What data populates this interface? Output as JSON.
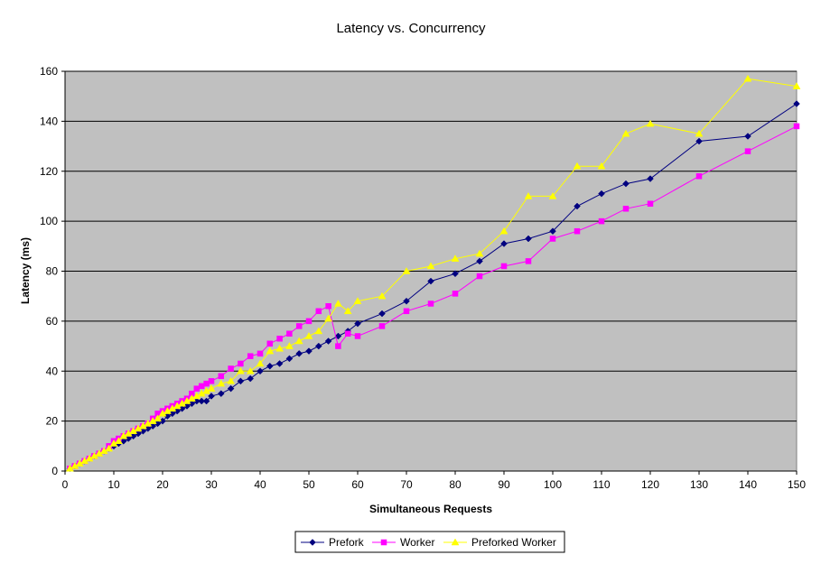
{
  "chart_data": {
    "type": "line",
    "title": "Latency vs. Concurrency",
    "xlabel": "Simultaneous Requests",
    "ylabel": "Latency (ms)",
    "xlim": [
      0,
      150
    ],
    "ylim": [
      0,
      160
    ],
    "xticks": [
      0,
      10,
      20,
      30,
      40,
      50,
      60,
      70,
      80,
      90,
      100,
      110,
      120,
      130,
      140,
      150
    ],
    "yticks": [
      0,
      20,
      40,
      60,
      80,
      100,
      120,
      140,
      160
    ],
    "grid": "horizontal",
    "legend_position": "bottom",
    "plot_background": "#c0c0c0",
    "series": [
      {
        "name": "Prefork",
        "color": "#000080",
        "marker": "diamond",
        "x": [
          1,
          2,
          3,
          4,
          5,
          6,
          7,
          8,
          9,
          10,
          11,
          12,
          13,
          14,
          15,
          16,
          17,
          18,
          19,
          20,
          21,
          22,
          23,
          24,
          25,
          26,
          27,
          28,
          29,
          30,
          32,
          34,
          36,
          38,
          40,
          42,
          44,
          46,
          48,
          50,
          52,
          54,
          56,
          58,
          60,
          65,
          70,
          75,
          80,
          85,
          90,
          95,
          100,
          105,
          110,
          115,
          120,
          130,
          140,
          150
        ],
        "y": [
          1,
          2,
          3,
          4,
          5,
          6,
          7,
          8,
          9,
          10,
          11,
          12,
          13,
          14,
          15,
          16,
          17,
          18,
          19,
          20,
          22,
          23,
          24,
          25,
          26,
          27,
          28,
          28,
          28,
          30,
          31,
          33,
          36,
          37,
          40,
          42,
          43,
          45,
          47,
          48,
          50,
          52,
          54,
          56,
          59,
          63,
          68,
          76,
          79,
          84,
          91,
          93,
          96,
          106,
          111,
          115,
          117,
          132,
          134,
          147
        ]
      },
      {
        "name": "Worker",
        "color": "#ff00ff",
        "marker": "square",
        "x": [
          1,
          2,
          3,
          4,
          5,
          6,
          7,
          8,
          9,
          10,
          11,
          12,
          13,
          14,
          15,
          16,
          17,
          18,
          19,
          20,
          21,
          22,
          23,
          24,
          25,
          26,
          27,
          28,
          29,
          30,
          32,
          34,
          36,
          38,
          40,
          42,
          44,
          46,
          48,
          50,
          52,
          54,
          56,
          58,
          60,
          65,
          70,
          75,
          80,
          85,
          90,
          95,
          100,
          105,
          110,
          115,
          120,
          130,
          140,
          150
        ],
        "y": [
          1,
          2,
          3,
          4,
          5,
          6,
          7,
          8,
          10,
          12,
          13,
          14,
          15,
          16,
          17,
          18,
          19,
          21,
          23,
          24,
          25,
          26,
          27,
          28,
          29,
          31,
          33,
          34,
          35,
          36,
          38,
          41,
          43,
          46,
          47,
          51,
          53,
          55,
          58,
          60,
          64,
          66,
          50,
          55,
          54,
          58,
          64,
          67,
          71,
          78,
          82,
          84,
          93,
          96,
          100,
          105,
          107,
          118,
          128,
          138
        ]
      },
      {
        "name": "Preforked Worker",
        "color": "#ffff00",
        "marker": "triangle",
        "x": [
          1,
          2,
          3,
          4,
          5,
          6,
          7,
          8,
          9,
          10,
          11,
          12,
          13,
          14,
          15,
          16,
          17,
          18,
          19,
          20,
          21,
          22,
          23,
          24,
          25,
          26,
          27,
          28,
          29,
          30,
          32,
          34,
          36,
          38,
          40,
          42,
          44,
          46,
          48,
          50,
          52,
          54,
          56,
          58,
          60,
          65,
          70,
          75,
          80,
          85,
          90,
          95,
          100,
          105,
          110,
          115,
          120,
          130,
          140,
          150
        ],
        "y": [
          1,
          2,
          3,
          4,
          5,
          6,
          7,
          8,
          9,
          11,
          12,
          14,
          15,
          16,
          17,
          18,
          19,
          20,
          21,
          23,
          24,
          25,
          26,
          27,
          28,
          29,
          30,
          31,
          32,
          33,
          35,
          36,
          40,
          40,
          43,
          48,
          49,
          50,
          52,
          54,
          56,
          61,
          67,
          64,
          68,
          70,
          80,
          82,
          85,
          87,
          96,
          110,
          110,
          122,
          122,
          135,
          139,
          135,
          157,
          154
        ]
      }
    ]
  }
}
